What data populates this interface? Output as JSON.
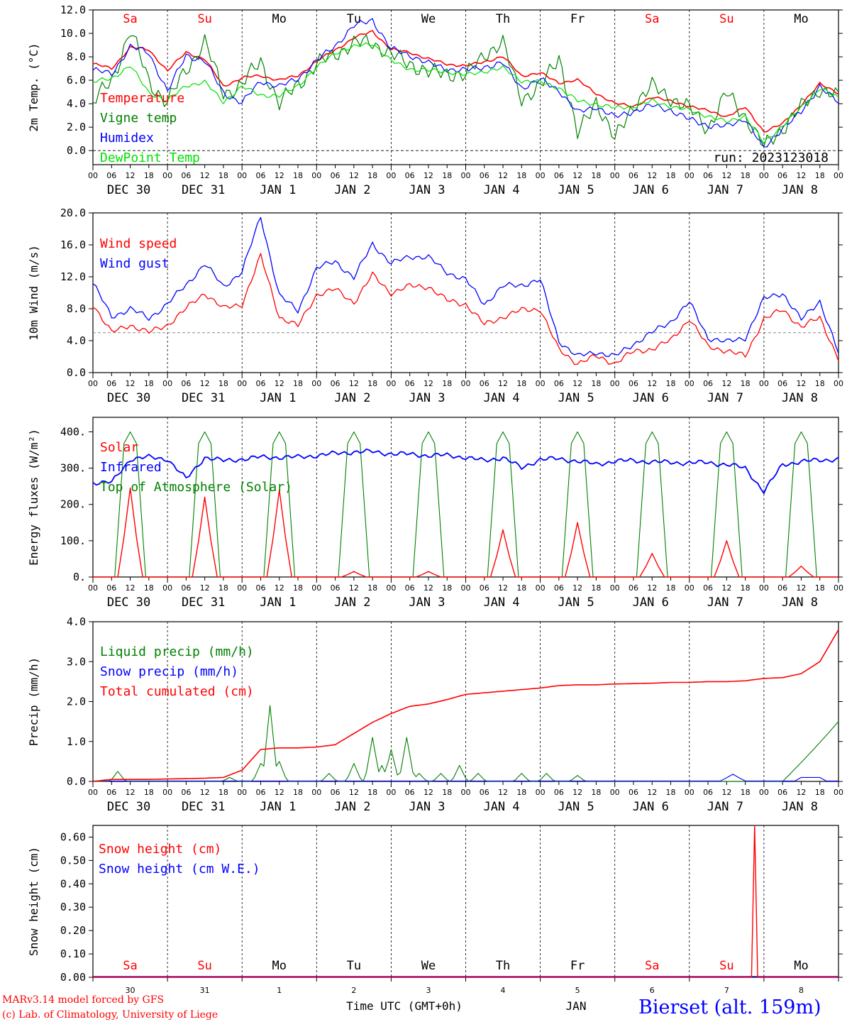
{
  "chart_data": [
    {
      "type": "line",
      "ylabel": "2m Temp. (°C)",
      "ylim": [
        -1.2,
        12.0
      ],
      "yticks": [
        "12.0",
        "10.0",
        "8.0",
        "6.0",
        "4.0",
        "2.0",
        "0.0"
      ],
      "x_axis": {
        "hour_labels": [
          "00",
          "06",
          "12",
          "18"
        ],
        "days": [
          "DEC 30",
          "DEC 31",
          "JAN  1",
          "JAN  2",
          "JAN  3",
          "JAN  4",
          "JAN  5",
          "JAN  6",
          "JAN  7",
          "JAN  8"
        ]
      },
      "weekdays": [
        "Sa",
        "Su",
        "Mo",
        "Tu",
        "We",
        "Th",
        "Fr",
        "Sa",
        "Su",
        "Mo"
      ],
      "weekday_colors": [
        "#ff0000",
        "#ff0000",
        "#000000",
        "#000000",
        "#000000",
        "#000000",
        "#000000",
        "#ff0000",
        "#ff0000",
        "#000000"
      ],
      "annotation": "run: 2023123018",
      "reference_line": 0.0,
      "x_hours_from_start": [
        0,
        6,
        12,
        18,
        24,
        30,
        36,
        42,
        48,
        54,
        60,
        66,
        72,
        78,
        84,
        90,
        96,
        102,
        108,
        114,
        120,
        126,
        132,
        138,
        144,
        150,
        156,
        162,
        168,
        174,
        180,
        186,
        192,
        198,
        204,
        210,
        216,
        222,
        228,
        234,
        240
      ],
      "series": [
        {
          "name": "Temperature",
          "color": "#ff0000",
          "values": [
            7.4,
            7.0,
            8.8,
            8.6,
            6.8,
            8.4,
            7.8,
            5.5,
            6.2,
            6.4,
            6.0,
            6.4,
            7.6,
            8.6,
            9.6,
            10.2,
            8.6,
            8.4,
            7.8,
            7.4,
            7.2,
            7.6,
            8.0,
            6.4,
            6.6,
            5.8,
            6.0,
            4.9,
            4.0,
            3.8,
            4.5,
            4.3,
            3.7,
            3.5,
            2.8,
            3.8,
            1.5,
            2.4,
            3.8,
            5.8,
            4.8
          ]
        },
        {
          "name": "Vigne temp",
          "color": "#008000",
          "values": [
            4.0,
            6.0,
            10.2,
            6.0,
            4.0,
            7.0,
            9.2,
            5.0,
            5.5,
            7.8,
            3.8,
            5.8,
            7.2,
            8.4,
            9.0,
            9.4,
            8.0,
            7.6,
            6.5,
            6.8,
            6.2,
            8.4,
            9.0,
            4.6,
            5.2,
            8.2,
            1.2,
            4.4,
            0.8,
            4.0,
            5.4,
            4.6,
            3.5,
            2.0,
            4.8,
            3.0,
            0.2,
            2.0,
            3.6,
            5.4,
            4.4
          ]
        },
        {
          "name": "Humidex",
          "color": "#0000ff",
          "values": [
            6.8,
            6.6,
            8.8,
            8.4,
            5.0,
            8.2,
            7.6,
            5.0,
            4.0,
            6.0,
            5.4,
            6.2,
            7.6,
            9.0,
            10.6,
            11.2,
            8.6,
            8.2,
            7.4,
            7.0,
            6.8,
            7.2,
            7.4,
            5.4,
            6.0,
            5.2,
            3.2,
            3.8,
            2.8,
            3.4,
            3.8,
            3.5,
            2.6,
            2.2,
            2.0,
            2.8,
            0.1,
            2.0,
            3.2,
            5.6,
            4.0
          ]
        },
        {
          "name": "DewPoint Temp",
          "color": "#00e000",
          "values": [
            5.8,
            6.2,
            7.2,
            5.0,
            4.2,
            5.6,
            5.8,
            4.2,
            5.4,
            4.8,
            4.6,
            5.6,
            7.0,
            8.4,
            8.8,
            9.2,
            7.6,
            7.0,
            6.8,
            6.8,
            6.4,
            6.8,
            7.0,
            6.0,
            5.8,
            5.4,
            4.2,
            4.0,
            3.6,
            3.8,
            4.2,
            3.8,
            3.4,
            3.0,
            2.4,
            3.0,
            0.6,
            2.2,
            3.6,
            5.4,
            4.4
          ]
        }
      ]
    },
    {
      "type": "line",
      "ylabel": "10m Wind (m/s)",
      "ylim": [
        0.0,
        20.0
      ],
      "yticks": [
        "20.0",
        "16.0",
        "12.0",
        "8.0",
        "4.0",
        "0.0"
      ],
      "reference_line": 5.0,
      "series": [
        {
          "name": "Wind speed",
          "color": "#ff0000",
          "values": [
            8.6,
            5.0,
            6.0,
            5.0,
            6.0,
            8.0,
            10.0,
            8.0,
            8.6,
            14.6,
            7.0,
            5.8,
            9.8,
            10.4,
            8.8,
            12.2,
            10.0,
            10.8,
            10.8,
            9.0,
            8.6,
            6.0,
            7.0,
            7.8,
            8.0,
            2.8,
            1.2,
            2.0,
            1.2,
            2.6,
            3.0,
            4.0,
            6.8,
            3.2,
            2.8,
            2.0,
            6.8,
            7.8,
            5.8,
            6.8,
            1.8
          ]
        },
        {
          "name": "Wind gust",
          "color": "#0000ff",
          "values": [
            11.2,
            7.0,
            8.0,
            6.8,
            8.6,
            11.0,
            13.6,
            10.8,
            12.6,
            19.6,
            9.6,
            7.8,
            13.0,
            14.0,
            11.8,
            16.2,
            13.6,
            14.6,
            14.4,
            12.6,
            11.6,
            8.6,
            10.8,
            11.0,
            11.6,
            4.0,
            2.0,
            2.6,
            2.0,
            3.6,
            5.0,
            6.4,
            8.8,
            4.4,
            3.8,
            4.4,
            9.2,
            10.0,
            6.6,
            9.0,
            2.4
          ]
        }
      ]
    },
    {
      "type": "line",
      "ylabel": "Energy fluxes (W/m²)",
      "ylim": [
        0,
        440
      ],
      "yticks": [
        "400.",
        "300.",
        "200.",
        "100.",
        "0."
      ],
      "series": [
        {
          "name": "Solar",
          "color": "#ff0000",
          "peaks": [
            245,
            220,
            240,
            15,
            15,
            130,
            150,
            65,
            100,
            30
          ]
        },
        {
          "name": "Infrared",
          "color": "#0000ff",
          "values": [
            260,
            260,
            325,
            330,
            325,
            270,
            330,
            320,
            325,
            330,
            330,
            330,
            335,
            340,
            345,
            345,
            340,
            338,
            335,
            335,
            330,
            320,
            330,
            300,
            325,
            325,
            320,
            310,
            320,
            320,
            318,
            315,
            315,
            315,
            310,
            300,
            235,
            310,
            318,
            322,
            325
          ]
        },
        {
          "name": "Top of Atmosphere (Solar)",
          "color": "#008000",
          "peak": 400
        }
      ]
    },
    {
      "type": "line",
      "ylabel": "Precip (mm/h)",
      "ylim": [
        0.0,
        4.0
      ],
      "yticks": [
        "4.0",
        "3.0",
        "2.0",
        "1.0",
        "0.0"
      ],
      "series": [
        {
          "name": "Liquid precip (mm/h)",
          "color": "#008000"
        },
        {
          "name": "Snow precip (mm/h)",
          "color": "#0000ff"
        },
        {
          "name": "Total cumulated (cm)",
          "color": "#ff0000",
          "values": [
            0.0,
            0.05,
            0.05,
            0.05,
            0.06,
            0.07,
            0.08,
            0.1,
            0.28,
            0.8,
            0.84,
            0.84,
            0.86,
            0.92,
            1.2,
            1.48,
            1.7,
            1.88,
            1.94,
            2.05,
            2.18,
            2.22,
            2.26,
            2.3,
            2.34,
            2.4,
            2.42,
            2.42,
            2.44,
            2.45,
            2.46,
            2.48,
            2.48,
            2.5,
            2.5,
            2.52,
            2.58,
            2.6,
            2.7,
            3.0,
            3.8
          ]
        }
      ]
    },
    {
      "type": "line",
      "ylabel": "Snow height (cm)",
      "ylim": [
        0.0,
        0.65
      ],
      "yticks": [
        "0.60",
        "0.50",
        "0.40",
        "0.30",
        "0.20",
        "0.10",
        "0.00"
      ],
      "day_numbers": [
        "30",
        "31",
        "1",
        "2",
        "3",
        "4",
        "5",
        "6",
        "7",
        "8"
      ],
      "month": "JAN",
      "xlabel": "Time UTC (GMT+0h)",
      "series": [
        {
          "name": "Snow height (cm)",
          "color": "#ff0000",
          "spike": {
            "hour": 213,
            "value": 0.65
          }
        },
        {
          "name": "Snow height (cm W.E.)",
          "color": "#0000ff",
          "values": [
            0.0
          ]
        }
      ]
    }
  ],
  "footer": {
    "model": "MARv3.14 model forced by GFS",
    "lab": "(c) Lab. of Climatology, University of Liege",
    "station": "Bierset (alt. 159m)"
  }
}
